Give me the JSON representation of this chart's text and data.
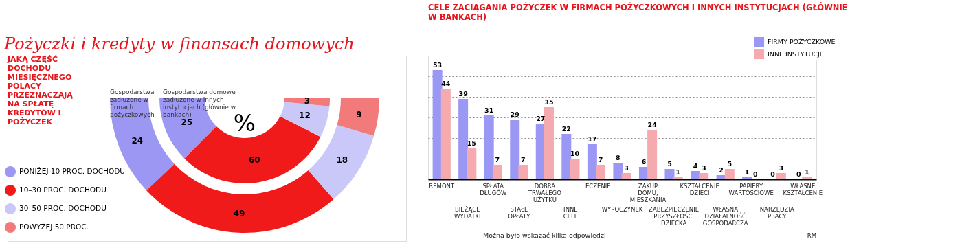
{
  "chart_data": [
    {
      "type": "donut",
      "title": "Pożyczki i kredyty w finansach domowych",
      "subtitle": "JAKĄ CZĘŚĆ DOCHODU MIESIĘCZNEGO POLACY PRZEZNACZAJĄ NA SPŁATĘ KREDYTÓW I POŻYCZEK",
      "categories": [
        "PONIŻEJ 10 PROC. DOCHODU",
        "10–30 PROC. DOCHODU",
        "30–50 PROC. DOCHODU",
        "POWYŻEJ 50 PROC."
      ],
      "colors": [
        "#9b97f2",
        "#f01a1a",
        "#cac8f8",
        "#f27a7a"
      ],
      "series": [
        {
          "name": "Gospodarstwa zadłużone w firmach pożyczkowych",
          "values": [
            24,
            49,
            18,
            9
          ]
        },
        {
          "name": "Gospodarstwa domowe zadłużone w innych instytucjach (głównie w bankach)",
          "values": [
            25,
            60,
            12,
            3
          ]
        }
      ],
      "data_labels": true,
      "legend": "left",
      "annotations": [
        "%"
      ]
    },
    {
      "type": "bar",
      "title": "CELE ZACIĄGANIA POŻYCZEK W FIRMACH POŻYCZKOWYCH I INNYCH INSTYTUCJACH (GŁÓWNIE W BANKACH)",
      "categories": [
        "REMONT",
        "BIEŻĄCE WYDATKI",
        "SPŁATA DŁUGÓW",
        "STAŁE OPŁATY",
        "DOBRA TRWAŁEGO UŻYTKU",
        "INNE CELE",
        "LECZENIE",
        "WYPOCZYNEK",
        "ZAKUP DOMU, MIESZKANIA",
        "ZABEZPIECZENIE PRZYSZŁOŚCI DZIECKA",
        "KSZTAŁCENIE DZIECI",
        "WŁASNA DZIAŁALNOŚĆ GOSPODARCZA",
        "PAPIERY WARTOŚCIOWE",
        "NARZĘDZIA PRACY",
        "WŁASNE KSZTAŁCENIE"
      ],
      "series": [
        {
          "name": "FIRMY POŻYCZKOWE",
          "color": "#9b97f5",
          "values": [
            53,
            39,
            31,
            29,
            27,
            22,
            17,
            8,
            6,
            5,
            4,
            2,
            1,
            0,
            0
          ]
        },
        {
          "name": "INNE INSTYTUCJE",
          "color": "#f4aaae",
          "values": [
            44,
            15,
            7,
            7,
            35,
            10,
            7,
            3,
            24,
            1,
            3,
            5,
            0,
            3,
            1
          ]
        }
      ],
      "ylim": [
        0,
        60
      ],
      "yticks": [
        0,
        10,
        20,
        30,
        40,
        50,
        60
      ],
      "grid": "y",
      "tick_labels": "x",
      "legend": "top right",
      "data_labels": true,
      "annotations": [
        "Można było wskazać kilka odpowiedzi",
        "RM"
      ]
    }
  ]
}
